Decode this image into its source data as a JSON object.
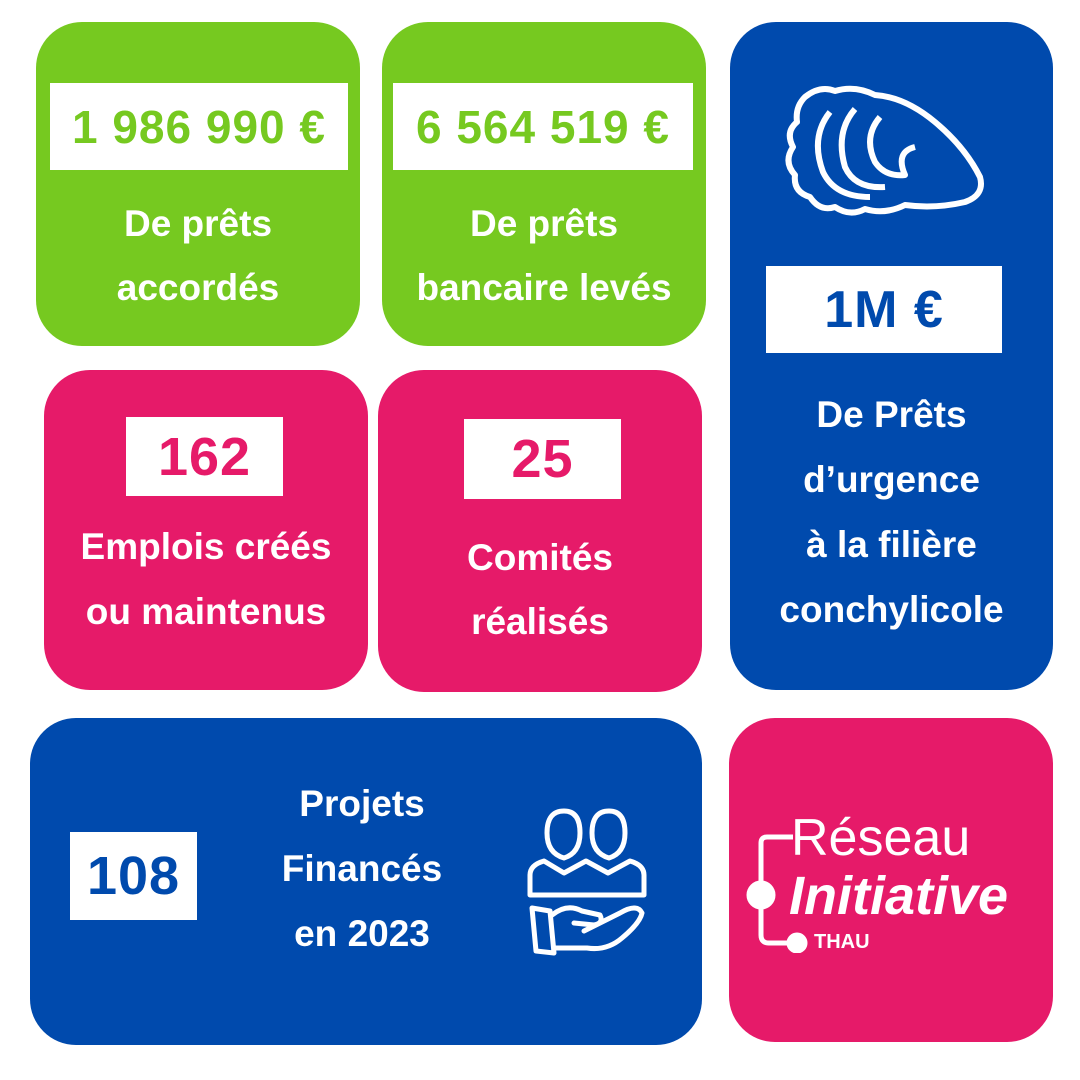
{
  "colors": {
    "green": "#76c920",
    "pink": "#e61a69",
    "blue": "#004aad"
  },
  "cards": [
    {
      "value": "1 986 990 €",
      "label": [
        "De prêts",
        "accordés"
      ]
    },
    {
      "value": "6 564 519 €",
      "label": [
        "De prêts",
        "bancaire levés"
      ]
    },
    {
      "value": "1M €",
      "label": [
        "De Prêts",
        "d’urgence",
        "à la filière",
        "conchylicole"
      ],
      "icon": "oyster-icon"
    },
    {
      "value": "162",
      "label": [
        "Emplois créés",
        "ou maintenus"
      ]
    },
    {
      "value": "25",
      "label": [
        "Comités",
        "réalisés"
      ]
    },
    {
      "value": "108",
      "label": [
        "Projets",
        "Financés",
        "en 2023"
      ],
      "icon": "people-in-hand-icon"
    }
  ],
  "logo": {
    "line1": "Réseau",
    "line2": "Initiative",
    "line3": "THAU"
  }
}
